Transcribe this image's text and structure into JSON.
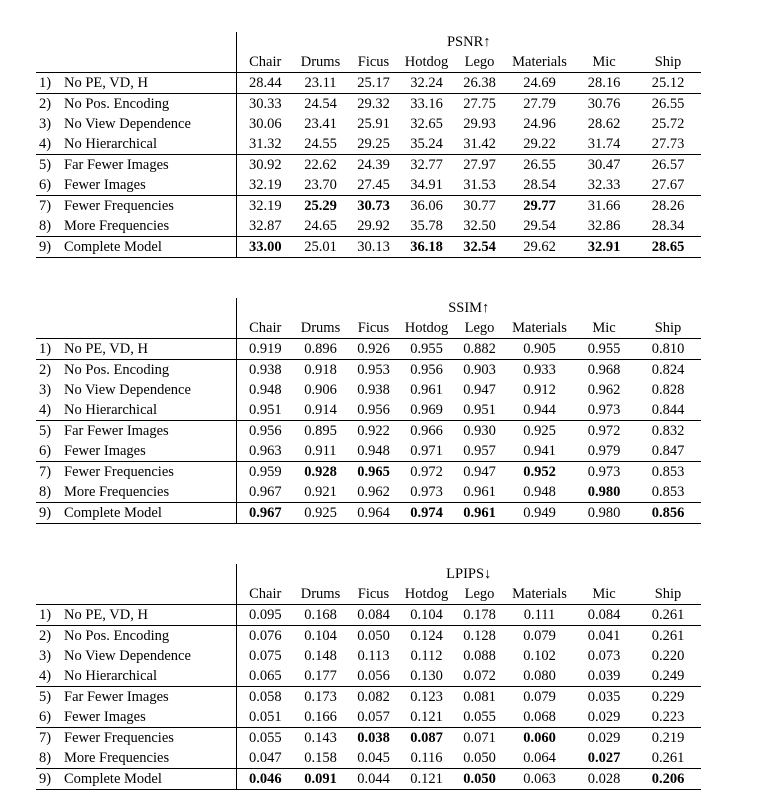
{
  "page": {
    "background": "#ffffff",
    "text_color": "#000000"
  },
  "tables": [
    {
      "title": "PSNR↑",
      "columns": [
        "Chair",
        "Drums",
        "Ficus",
        "Hotdog",
        "Lego",
        "Materials",
        "Mic",
        "Ship"
      ],
      "group_start_rows": [
        1,
        4,
        6,
        8
      ],
      "rows": [
        {
          "num": "1)",
          "label": "No PE, VD, H",
          "values": [
            "28.44",
            "23.11",
            "25.17",
            "32.24",
            "26.38",
            "24.69",
            "28.16",
            "25.12"
          ],
          "bold": []
        },
        {
          "num": "2)",
          "label": "No Pos. Encoding",
          "values": [
            "30.33",
            "24.54",
            "29.32",
            "33.16",
            "27.75",
            "27.79",
            "30.76",
            "26.55"
          ],
          "bold": []
        },
        {
          "num": "3)",
          "label": "No View Dependence",
          "values": [
            "30.06",
            "23.41",
            "25.91",
            "32.65",
            "29.93",
            "24.96",
            "28.62",
            "25.72"
          ],
          "bold": []
        },
        {
          "num": "4)",
          "label": "No Hierarchical",
          "values": [
            "31.32",
            "24.55",
            "29.25",
            "35.24",
            "31.42",
            "29.22",
            "31.74",
            "27.73"
          ],
          "bold": []
        },
        {
          "num": "5)",
          "label": "Far Fewer Images",
          "values": [
            "30.92",
            "22.62",
            "24.39",
            "32.77",
            "27.97",
            "26.55",
            "30.47",
            "26.57"
          ],
          "bold": []
        },
        {
          "num": "6)",
          "label": "Fewer Images",
          "values": [
            "32.19",
            "23.70",
            "27.45",
            "34.91",
            "31.53",
            "28.54",
            "32.33",
            "27.67"
          ],
          "bold": []
        },
        {
          "num": "7)",
          "label": "Fewer Frequencies",
          "values": [
            "32.19",
            "25.29",
            "30.73",
            "36.06",
            "30.77",
            "29.77",
            "31.66",
            "28.26"
          ],
          "bold": [
            1,
            2,
            5
          ]
        },
        {
          "num": "8)",
          "label": "More Frequencies",
          "values": [
            "32.87",
            "24.65",
            "29.92",
            "35.78",
            "32.50",
            "29.54",
            "32.86",
            "28.34"
          ],
          "bold": []
        },
        {
          "num": "9)",
          "label": "Complete Model",
          "values": [
            "33.00",
            "25.01",
            "30.13",
            "36.18",
            "32.54",
            "29.62",
            "32.91",
            "28.65"
          ],
          "bold": [
            0,
            3,
            4,
            6,
            7
          ]
        }
      ]
    },
    {
      "title": "SSIM↑",
      "columns": [
        "Chair",
        "Drums",
        "Ficus",
        "Hotdog",
        "Lego",
        "Materials",
        "Mic",
        "Ship"
      ],
      "group_start_rows": [
        1,
        4,
        6,
        8
      ],
      "rows": [
        {
          "num": "1)",
          "label": "No PE, VD, H",
          "values": [
            "0.919",
            "0.896",
            "0.926",
            "0.955",
            "0.882",
            "0.905",
            "0.955",
            "0.810"
          ],
          "bold": []
        },
        {
          "num": "2)",
          "label": "No Pos. Encoding",
          "values": [
            "0.938",
            "0.918",
            "0.953",
            "0.956",
            "0.903",
            "0.933",
            "0.968",
            "0.824"
          ],
          "bold": []
        },
        {
          "num": "3)",
          "label": "No View Dependence",
          "values": [
            "0.948",
            "0.906",
            "0.938",
            "0.961",
            "0.947",
            "0.912",
            "0.962",
            "0.828"
          ],
          "bold": []
        },
        {
          "num": "4)",
          "label": "No Hierarchical",
          "values": [
            "0.951",
            "0.914",
            "0.956",
            "0.969",
            "0.951",
            "0.944",
            "0.973",
            "0.844"
          ],
          "bold": []
        },
        {
          "num": "5)",
          "label": "Far Fewer Images",
          "values": [
            "0.956",
            "0.895",
            "0.922",
            "0.966",
            "0.930",
            "0.925",
            "0.972",
            "0.832"
          ],
          "bold": []
        },
        {
          "num": "6)",
          "label": "Fewer Images",
          "values": [
            "0.963",
            "0.911",
            "0.948",
            "0.971",
            "0.957",
            "0.941",
            "0.979",
            "0.847"
          ],
          "bold": []
        },
        {
          "num": "7)",
          "label": "Fewer Frequencies",
          "values": [
            "0.959",
            "0.928",
            "0.965",
            "0.972",
            "0.947",
            "0.952",
            "0.973",
            "0.853"
          ],
          "bold": [
            1,
            2,
            5
          ]
        },
        {
          "num": "8)",
          "label": "More Frequencies",
          "values": [
            "0.967",
            "0.921",
            "0.962",
            "0.973",
            "0.961",
            "0.948",
            "0.980",
            "0.853"
          ],
          "bold": [
            6
          ]
        },
        {
          "num": "9)",
          "label": "Complete Model",
          "values": [
            "0.967",
            "0.925",
            "0.964",
            "0.974",
            "0.961",
            "0.949",
            "0.980",
            "0.856"
          ],
          "bold": [
            0,
            3,
            4,
            7
          ]
        }
      ]
    },
    {
      "title": "LPIPS↓",
      "columns": [
        "Chair",
        "Drums",
        "Ficus",
        "Hotdog",
        "Lego",
        "Materials",
        "Mic",
        "Ship"
      ],
      "group_start_rows": [
        1,
        4,
        6,
        8
      ],
      "rows": [
        {
          "num": "1)",
          "label": "No PE, VD, H",
          "values": [
            "0.095",
            "0.168",
            "0.084",
            "0.104",
            "0.178",
            "0.111",
            "0.084",
            "0.261"
          ],
          "bold": []
        },
        {
          "num": "2)",
          "label": "No Pos. Encoding",
          "values": [
            "0.076",
            "0.104",
            "0.050",
            "0.124",
            "0.128",
            "0.079",
            "0.041",
            "0.261"
          ],
          "bold": []
        },
        {
          "num": "3)",
          "label": "No View Dependence",
          "values": [
            "0.075",
            "0.148",
            "0.113",
            "0.112",
            "0.088",
            "0.102",
            "0.073",
            "0.220"
          ],
          "bold": []
        },
        {
          "num": "4)",
          "label": "No Hierarchical",
          "values": [
            "0.065",
            "0.177",
            "0.056",
            "0.130",
            "0.072",
            "0.080",
            "0.039",
            "0.249"
          ],
          "bold": []
        },
        {
          "num": "5)",
          "label": "Far Fewer Images",
          "values": [
            "0.058",
            "0.173",
            "0.082",
            "0.123",
            "0.081",
            "0.079",
            "0.035",
            "0.229"
          ],
          "bold": []
        },
        {
          "num": "6)",
          "label": "Fewer Images",
          "values": [
            "0.051",
            "0.166",
            "0.057",
            "0.121",
            "0.055",
            "0.068",
            "0.029",
            "0.223"
          ],
          "bold": []
        },
        {
          "num": "7)",
          "label": "Fewer Frequencies",
          "values": [
            "0.055",
            "0.143",
            "0.038",
            "0.087",
            "0.071",
            "0.060",
            "0.029",
            "0.219"
          ],
          "bold": [
            2,
            3,
            5
          ]
        },
        {
          "num": "8)",
          "label": "More Frequencies",
          "values": [
            "0.047",
            "0.158",
            "0.045",
            "0.116",
            "0.050",
            "0.064",
            "0.027",
            "0.261"
          ],
          "bold": [
            6
          ]
        },
        {
          "num": "9)",
          "label": "Complete Model",
          "values": [
            "0.046",
            "0.091",
            "0.044",
            "0.121",
            "0.050",
            "0.063",
            "0.028",
            "0.206"
          ],
          "bold": [
            0,
            1,
            4,
            7
          ]
        }
      ]
    }
  ]
}
